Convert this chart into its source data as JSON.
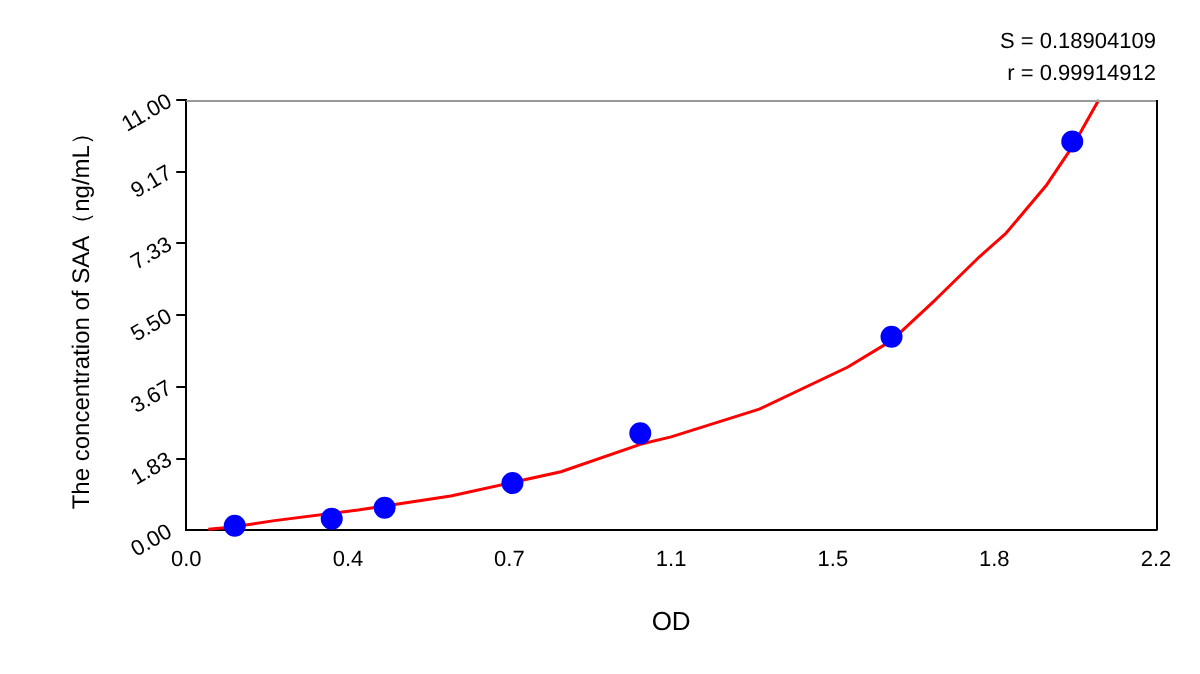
{
  "chart_data": {
    "type": "scatter",
    "xlabel": "OD",
    "ylabel": "The concentration of SAA（ng/mL）",
    "annotations": [
      "S = 0.18904109",
      "r = 0.99914912"
    ],
    "series": [
      {
        "color": "#0000ff",
        "marker": "circle",
        "x": [
          0.11,
          0.33,
          0.45,
          0.74,
          1.03,
          1.6,
          2.01
        ],
        "values": [
          0.12,
          0.3,
          0.58,
          1.21,
          2.48,
          4.95,
          9.94
        ]
      },
      {
        "type": "line",
        "color": "#ff0000",
        "marker": "none",
        "line_style": "solid",
        "x": [
          0.05,
          0.1,
          0.2,
          0.39,
          0.6,
          0.85,
          1.03,
          1.1,
          1.3,
          1.5,
          1.6,
          1.7,
          1.8,
          1.86,
          1.95,
          2.01,
          2.07
        ],
        "values": [
          0.03,
          0.08,
          0.25,
          0.52,
          0.88,
          1.5,
          2.2,
          2.39,
          3.1,
          4.17,
          4.85,
          5.9,
          7.0,
          7.6,
          8.8,
          9.8,
          11
        ]
      }
    ],
    "xlim": [
      0,
      2.2
    ],
    "ylim": [
      0,
      11
    ],
    "xticks": [
      {
        "value": 0,
        "label": "0.0"
      },
      {
        "value": 0.367,
        "label": "0.4"
      },
      {
        "value": 0.733,
        "label": "0.7"
      },
      {
        "value": 1.1,
        "label": "1.1"
      },
      {
        "value": 1.467,
        "label": "1.5"
      },
      {
        "value": 1.833,
        "label": "1.8"
      },
      {
        "value": 2.2,
        "label": "2.2"
      }
    ],
    "yticks": [
      {
        "value": 0,
        "label": "0.00"
      },
      {
        "value": 1.833,
        "label": "1.83"
      },
      {
        "value": 3.667,
        "label": "3.67"
      },
      {
        "value": 5.5,
        "label": "5.50"
      },
      {
        "value": 7.333,
        "label": "7.33"
      },
      {
        "value": 9.167,
        "label": "9.17"
      },
      {
        "value": 11,
        "label": "11.00"
      }
    ],
    "grid": false,
    "legend": false
  }
}
